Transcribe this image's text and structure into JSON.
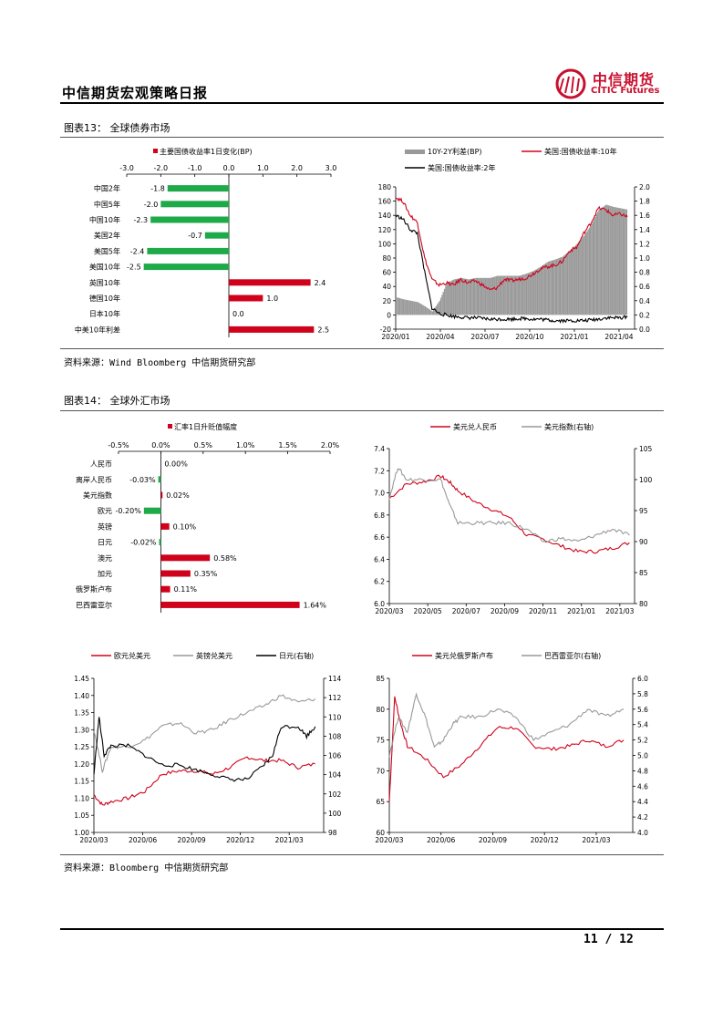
{
  "header": {
    "title": "中信期货宏观策略日报",
    "logo_cn": "中信期货",
    "logo_en": "CITIC Futures"
  },
  "section1": {
    "title": "图表13：  全球债券市场",
    "source": "资料来源：Wind Bloomberg 中信期货研究部"
  },
  "section2": {
    "title": "图表14：  全球外汇市场",
    "source": "资料来源：Bloomberg 中信期货研究部"
  },
  "footer": {
    "page": "11 / 12"
  },
  "colors": {
    "red": "#d0021b",
    "green": "#1faa4a",
    "gray": "#999999",
    "black": "#000000",
    "brand": "#c8102e"
  },
  "chart_data": [
    {
      "id": "bond_bar",
      "type": "bar",
      "orientation": "horizontal",
      "legend": [
        "主要国债收益率1日变化(BP)"
      ],
      "categories": [
        "中国2年",
        "中国5年",
        "中国10年",
        "美国2年",
        "美国5年",
        "美国10年",
        "英国10年",
        "德国10年",
        "日本10年",
        "中美10年利差"
      ],
      "values": [
        -1.8,
        -2.0,
        -2.3,
        -0.7,
        -2.4,
        -2.5,
        2.4,
        1.0,
        0.0,
        2.5
      ],
      "labels": [
        "-1.8",
        "-2.0",
        "-2.3",
        "-0.7",
        "-2.4",
        "-2.5",
        "2.4",
        "1.0",
        "0.0",
        "2.5"
      ],
      "xlim": [
        -3.0,
        3.0
      ],
      "ticks": [
        "-3.0",
        "-2.0",
        "-1.0",
        "0.0",
        "1.0",
        "2.0",
        "3.0"
      ]
    },
    {
      "id": "bond_line",
      "type": "line",
      "legend": [
        "10Y-2Y利差(BP)",
        "美国:国债收益率:10年",
        "美国:国债收益率:2年"
      ],
      "x_ticks": [
        "2020/01",
        "2020/04",
        "2020/07",
        "2020/10",
        "2021/01",
        "2021/04"
      ],
      "y_left_ticks": [
        "-20",
        "0",
        "20",
        "40",
        "60",
        "80",
        "100",
        "120",
        "140",
        "160",
        "180"
      ],
      "y_right_ticks": [
        "0.0",
        "0.2",
        "0.4",
        "0.6",
        "0.8",
        "1.0",
        "1.2",
        "1.4",
        "1.6",
        "1.8",
        "2.0"
      ],
      "ylim_left": [
        -20,
        180
      ],
      "ylim_right": [
        0,
        2
      ],
      "series": [
        {
          "name": "10Y-2Y利差(BP)",
          "axis": "left",
          "style": "bar",
          "months": [
            0,
            0.5,
            1,
            1.5,
            2,
            2.5,
            3,
            3.5,
            4,
            4.5,
            5,
            5.5,
            6,
            6.5,
            7,
            7.5,
            8,
            8.5,
            9,
            9.5,
            10,
            10.5,
            11,
            11.5,
            12,
            12.5,
            13,
            13.5,
            14,
            14.5,
            15,
            15.5,
            16
          ],
          "values": [
            25,
            22,
            20,
            18,
            12,
            5,
            20,
            45,
            50,
            52,
            50,
            52,
            52,
            52,
            55,
            55,
            55,
            55,
            58,
            62,
            68,
            75,
            78,
            82,
            90,
            100,
            112,
            128,
            148,
            155,
            152,
            150,
            148
          ]
        },
        {
          "name": "美国:国债收益率:10年",
          "axis": "right",
          "months": [
            0,
            0.5,
            1,
            1.5,
            2,
            2.5,
            3,
            3.5,
            4,
            4.5,
            5,
            5.5,
            6,
            6.5,
            7,
            7.5,
            8,
            8.5,
            9,
            9.5,
            10,
            10.5,
            11,
            11.5,
            12,
            12.5,
            13,
            13.5,
            14,
            14.5,
            15,
            15.5,
            16
          ],
          "values": [
            1.85,
            1.8,
            1.6,
            1.5,
            1.0,
            0.7,
            0.62,
            0.65,
            0.62,
            0.7,
            0.65,
            0.68,
            0.62,
            0.55,
            0.58,
            0.7,
            0.68,
            0.7,
            0.72,
            0.78,
            0.85,
            0.88,
            0.9,
            0.95,
            1.1,
            1.15,
            1.35,
            1.5,
            1.7,
            1.68,
            1.6,
            1.62,
            1.58
          ]
        },
        {
          "name": "美国:国债收益率:2年",
          "axis": "right",
          "months": [
            0,
            0.5,
            1,
            1.5,
            2,
            2.5,
            3,
            3.5,
            4,
            4.5,
            5,
            5.5,
            6,
            6.5,
            7,
            7.5,
            8,
            8.5,
            9,
            9.5,
            10,
            10.5,
            11,
            11.5,
            12,
            12.5,
            13,
            13.5,
            14,
            14.5,
            15,
            15.5,
            16
          ],
          "values": [
            1.6,
            1.55,
            1.4,
            1.35,
            0.8,
            0.3,
            0.22,
            0.2,
            0.18,
            0.17,
            0.16,
            0.16,
            0.15,
            0.14,
            0.14,
            0.14,
            0.14,
            0.15,
            0.15,
            0.14,
            0.14,
            0.13,
            0.12,
            0.12,
            0.12,
            0.12,
            0.12,
            0.13,
            0.14,
            0.16,
            0.16,
            0.16,
            0.17
          ]
        }
      ]
    },
    {
      "id": "fx_bar",
      "type": "bar",
      "orientation": "horizontal",
      "legend": [
        "汇率1日升贬值幅度"
      ],
      "categories": [
        "人民币",
        "离岸人民币",
        "美元指数",
        "欧元",
        "英镑",
        "日元",
        "澳元",
        "加元",
        "俄罗斯卢布",
        "巴西雷亚尔"
      ],
      "values": [
        0.0,
        -0.03,
        0.02,
        -0.2,
        0.1,
        -0.02,
        0.58,
        0.35,
        0.11,
        1.64
      ],
      "labels": [
        "0.00%",
        "-0.03%",
        "0.02%",
        "-0.20%",
        "0.10%",
        "-0.02%",
        "0.58%",
        "0.35%",
        "0.11%",
        "1.64%"
      ],
      "xlim": [
        -0.5,
        2.0
      ],
      "ticks": [
        "-0.5%",
        "0.0%",
        "0.5%",
        "1.0%",
        "1.5%",
        "2.0%"
      ]
    },
    {
      "id": "fx_usdcny",
      "type": "line",
      "legend": [
        "美元兑人民币",
        "美元指数(右轴)"
      ],
      "x_ticks": [
        "2020/03",
        "2020/05",
        "2020/07",
        "2020/09",
        "2020/11",
        "2021/01",
        "2021/03"
      ],
      "y_left_ticks": [
        "6.0",
        "6.2",
        "6.4",
        "6.6",
        "6.8",
        "7.0",
        "7.2",
        "7.4"
      ],
      "y_right_ticks": [
        "80",
        "85",
        "90",
        "95",
        "100",
        "105"
      ],
      "ylim_left": [
        6.0,
        7.4
      ],
      "ylim_right": [
        80,
        105
      ],
      "series": [
        {
          "name": "美元兑人民币",
          "axis": "left",
          "months": [
            0,
            1,
            2,
            3,
            3.5,
            4,
            5,
            6,
            7,
            8,
            9,
            10,
            11,
            12,
            13,
            14
          ],
          "values": [
            6.95,
            7.08,
            7.1,
            7.15,
            7.1,
            7.02,
            6.92,
            6.85,
            6.78,
            6.62,
            6.58,
            6.52,
            6.47,
            6.47,
            6.5,
            6.55
          ]
        },
        {
          "name": "美元指数(右轴)",
          "axis": "right",
          "months": [
            0,
            0.5,
            1,
            2,
            3,
            3.5,
            4,
            5,
            6,
            7,
            8,
            9,
            10,
            11,
            12,
            13,
            14
          ],
          "values": [
            97,
            102,
            100,
            100,
            100,
            96,
            93,
            93,
            93,
            93,
            92,
            90,
            90.5,
            90,
            91,
            92,
            91
          ]
        }
      ]
    },
    {
      "id": "fx_majors",
      "type": "line",
      "legend": [
        "欧元兑美元",
        "英镑兑美元",
        "日元(右轴)"
      ],
      "x_ticks": [
        "2020/03",
        "2020/06",
        "2020/09",
        "2020/12",
        "2021/03"
      ],
      "y_left_ticks": [
        "1.00",
        "1.05",
        "1.10",
        "1.15",
        "1.20",
        "1.25",
        "1.30",
        "1.35",
        "1.40",
        "1.45"
      ],
      "y_right_ticks": [
        "98",
        "100",
        "102",
        "104",
        "106",
        "108",
        "110",
        "112",
        "114"
      ],
      "ylim_left": [
        1.0,
        1.45
      ],
      "ylim_right": [
        98,
        114
      ],
      "series": [
        {
          "name": "欧元兑美元",
          "axis": "left",
          "months": [
            0,
            0.5,
            1,
            2,
            3,
            4,
            5,
            6,
            7,
            8,
            9,
            10,
            11,
            12,
            13
          ],
          "values": [
            1.11,
            1.08,
            1.09,
            1.1,
            1.12,
            1.17,
            1.18,
            1.18,
            1.17,
            1.19,
            1.22,
            1.21,
            1.21,
            1.19,
            1.2
          ]
        },
        {
          "name": "英镑兑美元",
          "axis": "left",
          "months": [
            0,
            0.5,
            1,
            2,
            3,
            4,
            5,
            6,
            7,
            8,
            9,
            10,
            11,
            12,
            13
          ],
          "values": [
            1.3,
            1.18,
            1.25,
            1.25,
            1.27,
            1.31,
            1.32,
            1.29,
            1.3,
            1.33,
            1.35,
            1.37,
            1.4,
            1.38,
            1.39
          ]
        },
        {
          "name": "日元(右轴)",
          "axis": "right",
          "months": [
            0,
            0.3,
            0.6,
            1,
            2,
            3,
            4,
            5,
            6,
            7,
            8,
            9,
            10,
            10.5,
            11,
            12,
            12.5,
            13
          ],
          "values": [
            104,
            110,
            106,
            107,
            107,
            106,
            105,
            105,
            104.5,
            104,
            103.5,
            103.5,
            105,
            106,
            109,
            109,
            108,
            109
          ]
        }
      ]
    },
    {
      "id": "fx_em",
      "type": "line",
      "legend": [
        "美元兑俄罗斯卢布",
        "巴西雷亚尔(右轴)"
      ],
      "x_ticks": [
        "2020/03",
        "2020/06",
        "2020/09",
        "2020/12",
        "2021/03"
      ],
      "y_left_ticks": [
        "60",
        "65",
        "70",
        "75",
        "80",
        "85"
      ],
      "y_right_ticks": [
        "4.0",
        "4.2",
        "4.4",
        "4.6",
        "4.8",
        "5.0",
        "5.2",
        "5.4",
        "5.6",
        "5.8",
        "6.0"
      ],
      "ylim_left": [
        60,
        85
      ],
      "ylim_right": [
        4.0,
        6.0
      ],
      "series": [
        {
          "name": "美元兑俄罗斯卢布",
          "axis": "left",
          "months": [
            0,
            0.3,
            0.6,
            1,
            2,
            3,
            4,
            5,
            6,
            7,
            8,
            9,
            10,
            11,
            12,
            13
          ],
          "values": [
            65,
            82,
            78,
            74,
            72,
            69,
            71,
            74,
            77,
            77,
            74,
            73.5,
            74,
            75,
            74,
            75
          ]
        },
        {
          "name": "巴西雷亚尔(右轴)",
          "axis": "right",
          "months": [
            0,
            0.5,
            1,
            1.5,
            2,
            2.5,
            3,
            3.5,
            4,
            5,
            6,
            7,
            8,
            9,
            10,
            11,
            12,
            13
          ],
          "values": [
            5.0,
            5.5,
            5.3,
            5.8,
            5.5,
            5.1,
            5.2,
            5.4,
            5.5,
            5.5,
            5.6,
            5.5,
            5.2,
            5.3,
            5.4,
            5.6,
            5.5,
            5.6
          ]
        }
      ]
    }
  ]
}
